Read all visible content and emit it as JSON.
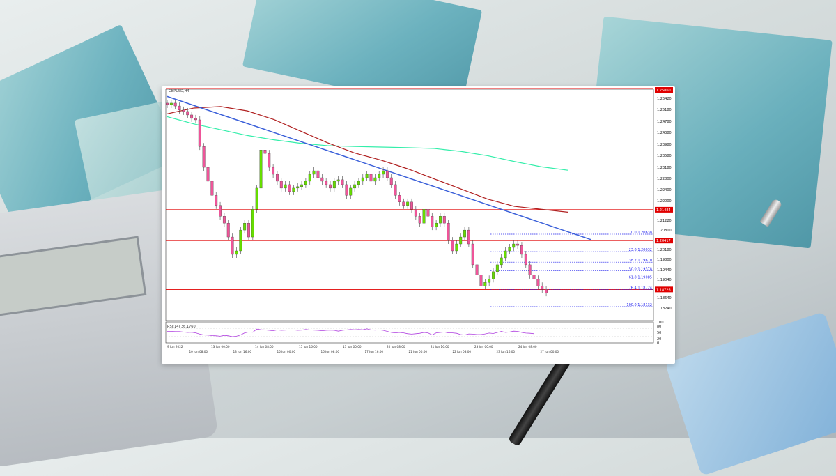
{
  "chart_data": {
    "type": "candlestick",
    "symbol_header": "GBPUSD,H4",
    "ylim": [
      1.1765,
      1.2565
    ],
    "closes": [
      1.2512,
      1.2517,
      1.2507,
      1.2493,
      1.2488,
      1.2476,
      1.2464,
      1.2459,
      1.2367,
      1.2295,
      1.2247,
      1.2198,
      1.2163,
      1.2126,
      1.2102,
      1.2054,
      1.1994,
      1.2006,
      1.2078,
      1.2102,
      1.2054,
      1.215,
      1.2223,
      1.2355,
      1.2343,
      1.2295,
      1.2271,
      1.2247,
      1.2223,
      1.2235,
      1.2211,
      1.2223,
      1.2228,
      1.2235,
      1.2247,
      1.2271,
      1.2283,
      1.2259,
      1.2247,
      1.2235,
      1.2223,
      1.2247,
      1.2252,
      1.2235,
      1.2198,
      1.2223,
      1.2235,
      1.2247,
      1.2259,
      1.2271,
      1.2247,
      1.2259,
      1.2271,
      1.2283,
      1.2259,
      1.2235,
      1.2198,
      1.2175,
      1.2163,
      1.2175,
      1.215,
      1.2126,
      1.2102,
      1.215,
      1.2126,
      1.209,
      1.2102,
      1.2126,
      1.2102,
      1.2042,
      1.2006,
      1.203,
      1.2054,
      1.2078,
      1.203,
      1.1958,
      1.1922,
      1.1885,
      1.1897,
      1.1909,
      1.1934,
      1.1958,
      1.1982,
      1.2006,
      1.2018,
      1.203,
      1.2025,
      1.1994,
      1.1958,
      1.1922,
      1.1909,
      1.1885,
      1.1873,
      1.1861
    ],
    "ma_red": [
      1.248,
      1.25,
      1.2505,
      1.249,
      1.246,
      1.242,
      1.238,
      1.2345,
      1.232,
      1.229,
      1.2255,
      1.222,
      1.2185,
      1.216,
      1.215,
      1.214
    ],
    "ma_green": [
      1.247,
      1.2445,
      1.2425,
      1.2405,
      1.239,
      1.2378,
      1.237,
      1.2367,
      1.2365,
      1.2363,
      1.236,
      1.235,
      1.2335,
      1.2315,
      1.2297,
      1.2285
    ],
    "trendline": {
      "from": [
        0,
        1.254
      ],
      "to": [
        104,
        1.2045
      ]
    },
    "horizontal_levels": [
      {
        "price": 1.21484,
        "label": "1.21484",
        "color": "#e00000"
      },
      {
        "price": 1.20417,
        "label": "1.20417",
        "color": "#e00000"
      },
      {
        "price": 1.18726,
        "label": "1.18726",
        "color": "#e00000"
      }
    ],
    "fibonacci": [
      {
        "label": "0.0 1.20638",
        "price": 1.20638
      },
      {
        "label": "23.6 1.20032",
        "price": 1.20032
      },
      {
        "label": "38.2 1.19670",
        "price": 1.1967
      },
      {
        "label": "50.0 1.19378",
        "price": 1.19378
      },
      {
        "label": "61.8 1.19085",
        "price": 1.19085
      },
      {
        "label": "76.4 1.18724",
        "price": 1.18724
      },
      {
        "label": "100.0 1.18132",
        "price": 1.18132
      }
    ],
    "price_ticks": [
      "1.25420",
      "1.25180",
      "1.24780",
      "1.24380",
      "1.23980",
      "1.23580",
      "1.23180",
      "1.22800",
      "1.22400",
      "1.22000",
      "1.21220",
      "1.20800",
      "1.20180",
      "1.19800",
      "1.19440",
      "1.19040",
      "1.18640",
      "1.18240"
    ],
    "top_price_label": "1.25860",
    "rsi": {
      "label": "RSI(14) 36.1760",
      "ylim": [
        0,
        100
      ],
      "ticks": [
        "100",
        "80",
        "50",
        "20",
        "0"
      ],
      "levels": [
        70,
        30
      ],
      "values": [
        55,
        55,
        54,
        54,
        52,
        50,
        51,
        48,
        42,
        38,
        37,
        35,
        34,
        32,
        36,
        34,
        30,
        32,
        38,
        48,
        52,
        51,
        66,
        63,
        62,
        60,
        58,
        62,
        60,
        61,
        62,
        62,
        60,
        61,
        64,
        62,
        61,
        60,
        58,
        60,
        61,
        60,
        56,
        60,
        62,
        64,
        63,
        64,
        63,
        67,
        62,
        61,
        62,
        60,
        55,
        50,
        48,
        50,
        48,
        44,
        42,
        44,
        46,
        50,
        48,
        38,
        48,
        50,
        52,
        48,
        48,
        46,
        40,
        38,
        43,
        42,
        40,
        40,
        43,
        47,
        45,
        50,
        55,
        50,
        52,
        56,
        55,
        50,
        47,
        46,
        44
      ]
    },
    "time_labels": [
      "9 Jun 2022",
      "10 Jun 08:00",
      "13 Jun 00:00",
      "13 Jun 16:00",
      "14 Jun 08:00",
      "15 Jun 00:00",
      "15 Jun 16:00",
      "16 Jun 08:00",
      "17 Jun 00:00",
      "17 Jun 16:00",
      "20 Jun 08:00",
      "21 Jun 00:00",
      "21 Jun 16:00",
      "22 Jun 08:00",
      "23 Jun 00:00",
      "23 Jun 16:00",
      "24 Jun 08:00",
      "27 Jun 00:00"
    ],
    "colors": {
      "bull": "#66dd00",
      "bear": "#ee5599",
      "ma_red": "#b02020",
      "ma_green": "#33eeaa",
      "trendline": "#3a5fd9",
      "fib": "#2222ee",
      "rsi": "#b040e0"
    }
  }
}
